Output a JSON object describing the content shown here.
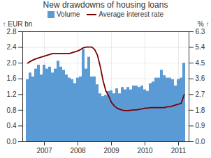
{
  "chart_data": {
    "type": "bar",
    "title": "New drawdowns of housing loans",
    "categories": [
      null,
      null,
      null,
      null,
      null,
      null,
      "2007",
      null,
      null,
      null,
      null,
      null,
      null,
      null,
      null,
      null,
      null,
      null,
      "2008",
      null,
      null,
      null,
      null,
      null,
      null,
      null,
      null,
      null,
      null,
      null,
      "2009",
      null,
      null,
      null,
      null,
      null,
      null,
      null,
      null,
      null,
      null,
      null,
      "2010",
      null,
      null,
      null,
      null,
      null,
      null,
      null,
      null,
      null,
      null,
      null,
      "2011",
      null,
      null
    ],
    "series": [
      {
        "name": "Volume",
        "type": "bar",
        "color": "#5b9bd5",
        "values": [
          1.58,
          1.75,
          1.65,
          1.85,
          1.95,
          1.7,
          1.95,
          1.85,
          1.9,
          1.75,
          1.85,
          2.05,
          1.9,
          1.82,
          1.7,
          1.62,
          1.58,
          1.48,
          1.62,
          1.65,
          2.35,
          1.85,
          2.15,
          1.65,
          1.65,
          1.45,
          1.22,
          1.15,
          1.18,
          1.28,
          1.3,
          1.22,
          1.35,
          1.22,
          1.38,
          1.32,
          1.38,
          1.32,
          1.42,
          1.42,
          1.38,
          1.42,
          1.32,
          1.28,
          1.48,
          1.52,
          1.62,
          1.62,
          1.82,
          1.68,
          1.62,
          1.62,
          1.58,
          1.42,
          1.58,
          1.62,
          2.0
        ]
      },
      {
        "name": "Average interest rate",
        "type": "line",
        "color": "#7b0000",
        "axis": "y2",
        "values": [
          4.5,
          4.6,
          4.68,
          4.75,
          4.8,
          4.85,
          4.9,
          4.95,
          5.0,
          5.05,
          5.05,
          5.05,
          5.05,
          5.05,
          5.05,
          5.05,
          5.1,
          5.15,
          5.2,
          5.28,
          5.38,
          5.42,
          5.42,
          5.42,
          5.28,
          4.95,
          4.3,
          3.5,
          2.9,
          2.62,
          2.25,
          2.05,
          1.92,
          1.85,
          1.8,
          1.78,
          1.78,
          1.8,
          1.82,
          1.82,
          1.85,
          1.88,
          1.92,
          1.92,
          1.95,
          1.95,
          1.95,
          1.95,
          1.95,
          1.95,
          2.0,
          2.0,
          2.05,
          2.1,
          2.15,
          2.2,
          2.68
        ]
      }
    ],
    "ylabel": "EUR bn",
    "y2label": "%",
    "ylim": [
      0.0,
      2.8
    ],
    "yticks": [
      {
        "value": 0.0,
        "label": "0.0"
      },
      0.4,
      0.8,
      1.2,
      1.6,
      {
        "value": 2.0,
        "label": "2.0"
      },
      2.4,
      2.8
    ],
    "y2lim": [
      0.0,
      6.3
    ],
    "y2ticks": [
      {
        "value": 0.0,
        "label": "0.0"
      },
      0.9,
      1.8,
      2.7,
      3.6,
      4.5,
      5.4,
      6.3
    ],
    "grid": true,
    "legend": "top"
  }
}
